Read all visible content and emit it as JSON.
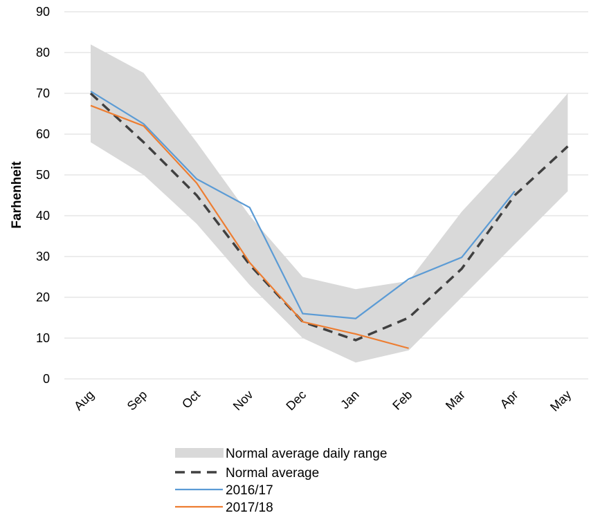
{
  "chart_data": {
    "type": "line",
    "y_label": "Farhenheit",
    "categories": [
      "Aug",
      "Sep",
      "Oct",
      "Nov",
      "Dec",
      "Jan",
      "Feb",
      "Mar",
      "Apr",
      "May"
    ],
    "ylim": [
      0,
      90
    ],
    "yticks": [
      0,
      10,
      20,
      30,
      40,
      50,
      60,
      70,
      80,
      90
    ],
    "grid": true,
    "series": [
      {
        "name": "Normal average daily range",
        "kind": "range",
        "color": "#d9d9d9",
        "low": [
          58,
          50,
          38,
          23,
          10,
          4,
          7,
          20,
          33,
          46
        ],
        "high": [
          82,
          75,
          58,
          40,
          25,
          22,
          24,
          41,
          55,
          70
        ]
      },
      {
        "name": "Normal average",
        "kind": "dashed",
        "color": "#404040",
        "values": [
          70,
          58,
          45,
          28,
          14,
          9.5,
          15,
          27,
          45,
          57
        ]
      },
      {
        "name": "2016/17",
        "kind": "line",
        "color": "#5b9bd5",
        "values": [
          70.5,
          62.5,
          49,
          42,
          16,
          14.8,
          24.5,
          29.8,
          46,
          null
        ]
      },
      {
        "name": "2017/18",
        "kind": "line",
        "color": "#ed7d31",
        "values": [
          67,
          62,
          48,
          28.5,
          14,
          11,
          7.5,
          null,
          null,
          null
        ]
      }
    ]
  }
}
